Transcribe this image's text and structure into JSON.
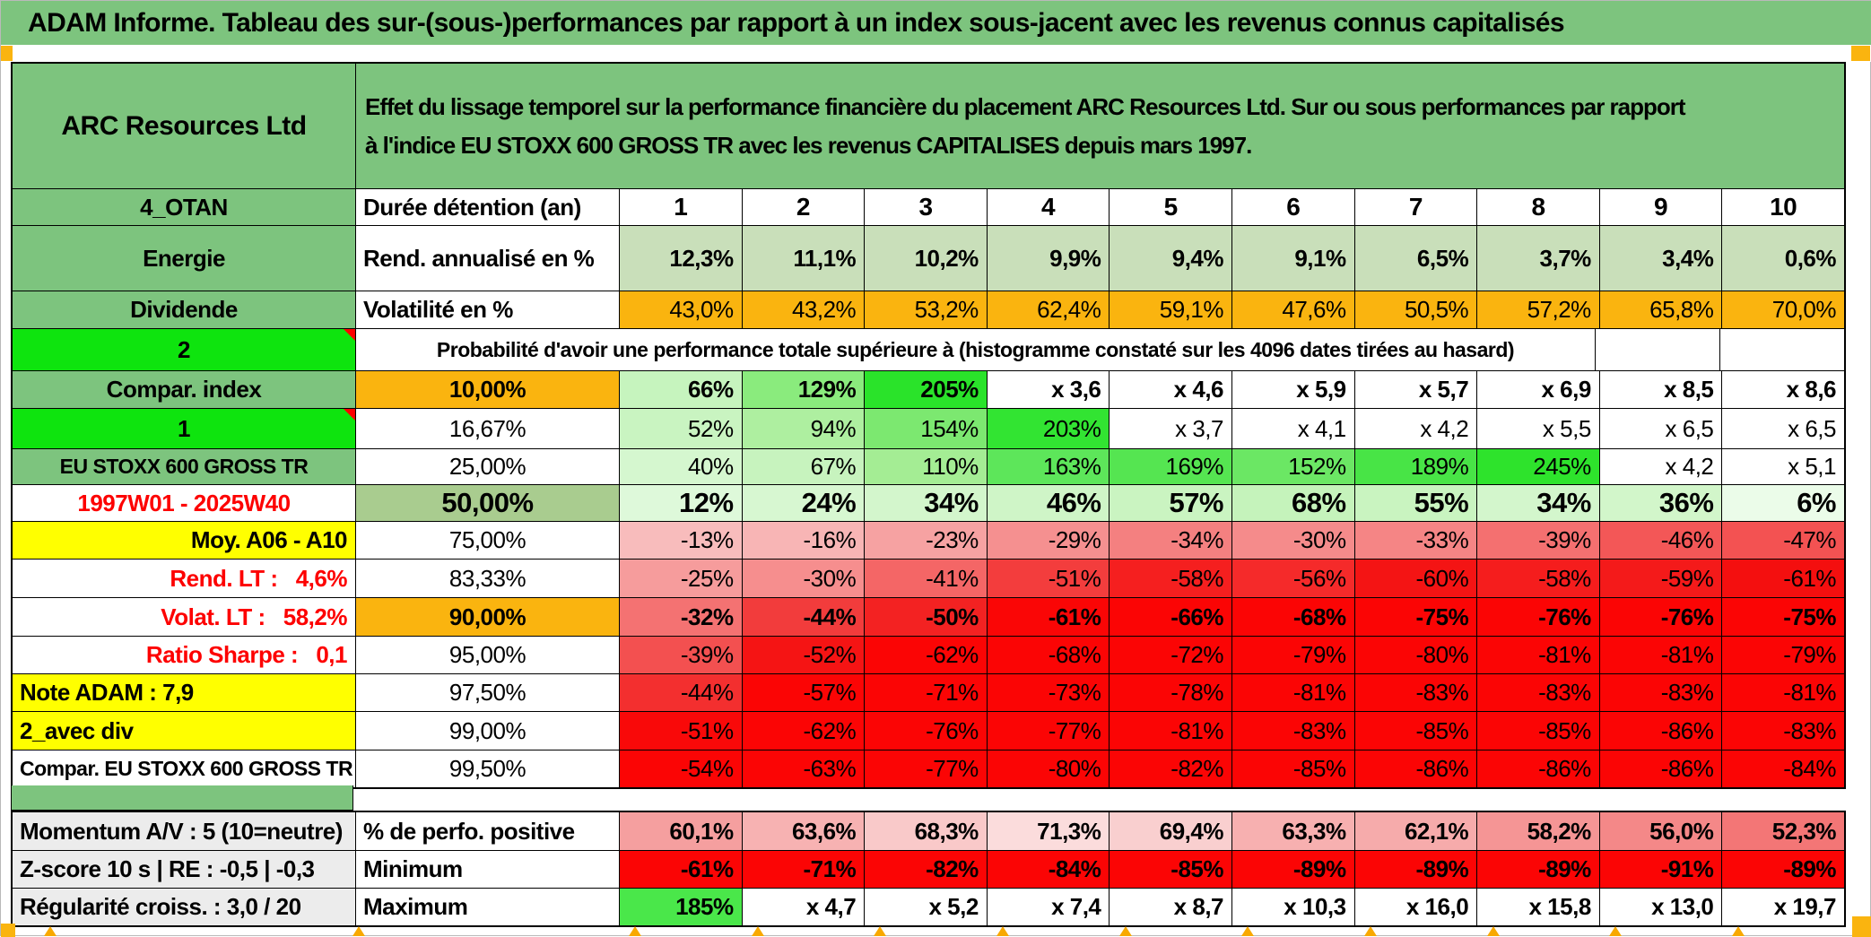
{
  "page_title": "ADAM Informe. Tableau des sur-(sous-)performances par rapport à un index sous-jacent avec les revenus connus capitalisés",
  "header": {
    "security_name": "ARC Resources Ltd",
    "description_line1": "Effet du lissage temporel sur la performance financière du placement ARC Resources Ltd. Sur ou sous performances par rapport",
    "description_line2": "à l'indice EU STOXX 600 GROSS TR avec les revenus CAPITALISES depuis mars 1997."
  },
  "colors": {
    "title_green": "#7dc47e",
    "header_green": "#7dc47e",
    "bright_green": "#0ee40e",
    "light_green_row": "#c9dfba",
    "sage_green": "#a9cc8f",
    "orange": "#fab40f",
    "yellow": "#ffff00",
    "gray_label": "#ececec",
    "full_red": "#fb0505",
    "red_text": "#fd0000",
    "white": "#ffffff"
  },
  "duration_row": {
    "label": "4_OTAN",
    "col2": "Durée détention (an)",
    "values": [
      "1",
      "2",
      "3",
      "4",
      "5",
      "6",
      "7",
      "8",
      "9",
      "10"
    ]
  },
  "probability_note": "Probabilité d'avoir une performance totale supérieure à (histogramme constaté sur les 4096 dates tirées au hasard)",
  "rows": [
    {
      "id": "rend",
      "label": {
        "text": "Energie",
        "bg": "#7dc47e",
        "align": "center"
      },
      "col2": {
        "text": "Rend. annualisé en %",
        "bg": "#ffffff",
        "align": "left",
        "bold": true
      },
      "values_bold": true,
      "values": [
        "12,3%",
        "11,1%",
        "10,2%",
        "9,9%",
        "9,4%",
        "9,1%",
        "6,5%",
        "3,7%",
        "3,4%",
        "0,6%"
      ],
      "value_colors": [
        "#c9dfba",
        "#c9dfba",
        "#c9dfba",
        "#c9dfba",
        "#c9dfba",
        "#c9dfba",
        "#c9dfba",
        "#c9dfba",
        "#c9dfba",
        "#c9dfba"
      ]
    },
    {
      "id": "vol",
      "label": {
        "text": "Dividende",
        "bg": "#7dc47e",
        "align": "center"
      },
      "col2": {
        "text": "Volatilité en %",
        "bg": "#ffffff",
        "align": "left",
        "bold": true
      },
      "values_bold": false,
      "values": [
        "43,0%",
        "43,2%",
        "53,2%",
        "62,4%",
        "59,1%",
        "47,6%",
        "50,5%",
        "57,2%",
        "65,8%",
        "70,0%"
      ],
      "value_colors": [
        "#fab40f",
        "#fab40f",
        "#fab40f",
        "#fab40f",
        "#fab40f",
        "#fab40f",
        "#fab40f",
        "#fab40f",
        "#fab40f",
        "#fab40f"
      ]
    },
    {
      "id": "proba",
      "label": {
        "text": "2",
        "bg": "#0ee40e",
        "align": "center",
        "corner": true
      }
    },
    {
      "id": "p10",
      "label": {
        "text": "Compar. index",
        "bg": "#7dc47e",
        "align": "center"
      },
      "col2": {
        "text": "10,00%",
        "bg": "#fab40f",
        "bold": true
      },
      "values_bold": true,
      "values": [
        "66%",
        "129%",
        "205%",
        "x 3,6",
        "x 4,6",
        "x 5,9",
        "x 5,7",
        "x 6,9",
        "x 8,5",
        "x 8,6"
      ],
      "value_colors": [
        "#c6f4be",
        "#8aeb7d",
        "#2ae32a",
        "#ffffff",
        "#ffffff",
        "#ffffff",
        "#ffffff",
        "#ffffff",
        "#ffffff",
        "#ffffff"
      ]
    },
    {
      "id": "p16",
      "label": {
        "text": "1",
        "bg": "#0ee40e",
        "align": "center",
        "corner": true
      },
      "col2": {
        "text": "16,67%",
        "bg": "#ffffff"
      },
      "values_bold": false,
      "values": [
        "52%",
        "94%",
        "154%",
        "203%",
        "x 3,7",
        "x 4,1",
        "x 4,2",
        "x 5,5",
        "x 6,5",
        "x 6,5"
      ],
      "value_colors": [
        "#c9f4c1",
        "#aeefa0",
        "#7ce870",
        "#32e432",
        "#ffffff",
        "#ffffff",
        "#ffffff",
        "#ffffff",
        "#ffffff",
        "#ffffff"
      ]
    },
    {
      "id": "p25",
      "label": {
        "text": "EU STOXX 600 GROSS TR",
        "bg": "#7dc47e",
        "align": "center",
        "small": true
      },
      "col2": {
        "text": "25,00%",
        "bg": "#ffffff"
      },
      "values_bold": false,
      "values": [
        "40%",
        "67%",
        "110%",
        "163%",
        "169%",
        "152%",
        "189%",
        "245%",
        "x 4,2",
        "x 5,1"
      ],
      "value_colors": [
        "#d5f7cf",
        "#c7f3be",
        "#a4ed94",
        "#5de65a",
        "#55e551",
        "#6be764",
        "#48e446",
        "#2ee32c",
        "#ffffff",
        "#ffffff"
      ]
    },
    {
      "id": "p50",
      "label": {
        "text": "1997W01 - 2025W40",
        "bg": "#ffffff",
        "color": "#fd0000",
        "align": "center"
      },
      "col2": {
        "text": "50,00%",
        "bg": "#a9cc8f",
        "bold": true,
        "big": true
      },
      "values_bold": true,
      "values_big": true,
      "values": [
        "12%",
        "24%",
        "34%",
        "46%",
        "57%",
        "68%",
        "55%",
        "34%",
        "36%",
        "6%"
      ],
      "value_colors": [
        "#def9da",
        "#d7f7d1",
        "#d3f6cc",
        "#cff5c7",
        "#caf4c1",
        "#c5f3bb",
        "#c9f4c0",
        "#d3f6cc",
        "#d2f6ca",
        "#ebfce9"
      ]
    },
    {
      "id": "p75",
      "label": {
        "text": "Moy. A06 - A10",
        "bg": "#ffff00",
        "align": "right"
      },
      "col2": {
        "text": "75,00%",
        "bg": "#ffffff"
      },
      "values_bold": false,
      "values": [
        "-13%",
        "-16%",
        "-23%",
        "-29%",
        "-34%",
        "-30%",
        "-33%",
        "-39%",
        "-46%",
        "-47%"
      ],
      "value_colors": [
        "#f8bcbc",
        "#f8b5b5",
        "#f6a2a2",
        "#f59090",
        "#f48080",
        "#f58b8b",
        "#f58585",
        "#f47070",
        "#f35757",
        "#f35252"
      ]
    },
    {
      "id": "p83",
      "label": {
        "text": "Rend. LT :   4,6%",
        "bg": "#ffffff",
        "color": "#fd0000",
        "align": "right"
      },
      "col2": {
        "text": "83,33%",
        "bg": "#ffffff"
      },
      "values_bold": false,
      "values": [
        "-25%",
        "-30%",
        "-41%",
        "-51%",
        "-58%",
        "-56%",
        "-60%",
        "-58%",
        "-59%",
        "-61%"
      ],
      "value_colors": [
        "#f69c9c",
        "#f68e8e",
        "#f46666",
        "#f33d3d",
        "#f51f1f",
        "#f52a2a",
        "#f41414",
        "#f51d1d",
        "#f41a1a",
        "#f40f0f"
      ]
    },
    {
      "id": "p90",
      "label": {
        "text": "Volat. LT :   58,2%",
        "bg": "#ffffff",
        "color": "#fd0000",
        "align": "right"
      },
      "col2": {
        "text": "90,00%",
        "bg": "#fab40f",
        "bold": true
      },
      "values_bold": true,
      "values": [
        "-32%",
        "-44%",
        "-50%",
        "-61%",
        "-66%",
        "-68%",
        "-75%",
        "-76%",
        "-76%",
        "-75%"
      ],
      "value_colors": [
        "#f47272",
        "#f23c3c",
        "#f32222",
        "#fa0606",
        "#fb0505",
        "#fb0505",
        "#fb0505",
        "#fb0505",
        "#fb0505",
        "#fb0505"
      ]
    },
    {
      "id": "p95",
      "label": {
        "text": "Ratio Sharpe :   0,1",
        "bg": "#ffffff",
        "color": "#fd0000",
        "align": "right"
      },
      "col2": {
        "text": "95,00%",
        "bg": "#ffffff"
      },
      "values_bold": false,
      "values": [
        "-39%",
        "-52%",
        "-62%",
        "-68%",
        "-72%",
        "-79%",
        "-80%",
        "-81%",
        "-81%",
        "-79%"
      ],
      "value_colors": [
        "#f35050",
        "#f51414",
        "#fb0505",
        "#fb0505",
        "#fb0505",
        "#fb0505",
        "#fb0505",
        "#fb0505",
        "#fb0505",
        "#fb0505"
      ]
    },
    {
      "id": "p975",
      "label": {
        "text": "Note ADAM : 7,9",
        "bg": "#ffff00",
        "align": "left"
      },
      "col2": {
        "text": "97,50%",
        "bg": "#ffffff"
      },
      "values_bold": false,
      "values": [
        "-44%",
        "-57%",
        "-71%",
        "-73%",
        "-78%",
        "-81%",
        "-83%",
        "-83%",
        "-83%",
        "-81%"
      ],
      "value_colors": [
        "#f32f2f",
        "#fb0505",
        "#fb0505",
        "#fb0505",
        "#fb0505",
        "#fb0505",
        "#fb0505",
        "#fb0505",
        "#fb0505",
        "#fb0505"
      ]
    },
    {
      "id": "p99",
      "label": {
        "text": "2_avec div",
        "bg": "#ffff00",
        "align": "left"
      },
      "col2": {
        "text": "99,00%",
        "bg": "#ffffff"
      },
      "values_bold": false,
      "values": [
        "-51%",
        "-62%",
        "-76%",
        "-77%",
        "-81%",
        "-83%",
        "-85%",
        "-85%",
        "-86%",
        "-83%"
      ],
      "value_colors": [
        "#f90909",
        "#fb0505",
        "#fb0505",
        "#fb0505",
        "#fb0505",
        "#fb0505",
        "#fb0505",
        "#fb0505",
        "#fb0505",
        "#fb0505"
      ]
    },
    {
      "id": "p995",
      "label": {
        "text": "Compar. EU STOXX 600 GROSS TR",
        "bg": "#ffffff",
        "align": "left",
        "small": true
      },
      "col2": {
        "text": "99,50%",
        "bg": "#ffffff"
      },
      "values_bold": false,
      "values": [
        "-54%",
        "-63%",
        "-77%",
        "-80%",
        "-82%",
        "-85%",
        "-86%",
        "-86%",
        "-86%",
        "-84%"
      ],
      "value_colors": [
        "#fb0505",
        "#fb0505",
        "#fb0505",
        "#fb0505",
        "#fb0505",
        "#fb0505",
        "#fb0505",
        "#fb0505",
        "#fb0505",
        "#fb0505"
      ]
    }
  ],
  "bottom_rows": [
    {
      "id": "perfo",
      "label": "Momentum A/V : 5 (10=neutre)",
      "col2": "% de perfo. positive",
      "values": [
        "60,1%",
        "63,6%",
        "68,3%",
        "71,3%",
        "69,4%",
        "63,3%",
        "62,1%",
        "58,2%",
        "56,0%",
        "52,3%"
      ],
      "value_colors": [
        "#f59f9f",
        "#f7b2b2",
        "#f9c9c9",
        "#fbdcdc",
        "#f9cfcf",
        "#f7b0b0",
        "#f6abab",
        "#f59595",
        "#f48888",
        "#f37676"
      ]
    },
    {
      "id": "min",
      "label": "Z-score 10 s | RE : -0,5 | -0,3",
      "col2": "Minimum",
      "values": [
        "-61%",
        "-71%",
        "-82%",
        "-84%",
        "-85%",
        "-89%",
        "-89%",
        "-89%",
        "-91%",
        "-89%"
      ],
      "value_colors": [
        "#fb0505",
        "#fb0505",
        "#fb0505",
        "#fb0505",
        "#fb0505",
        "#fb0505",
        "#fb0505",
        "#fb0505",
        "#fb0505",
        "#fb0505"
      ]
    },
    {
      "id": "max",
      "label": "Régularité croiss. : 3,0 / 20",
      "col2": "Maximum",
      "values": [
        "185%",
        "x 4,7",
        "x 5,2",
        "x 7,4",
        "x 8,7",
        "x 10,3",
        "x 16,0",
        "x 15,8",
        "x 13,0",
        "x 19,7"
      ],
      "value_colors": [
        "#4ae74a",
        "#ffffff",
        "#ffffff",
        "#ffffff",
        "#ffffff",
        "#ffffff",
        "#ffffff",
        "#ffffff",
        "#ffffff",
        "#ffffff"
      ]
    }
  ]
}
